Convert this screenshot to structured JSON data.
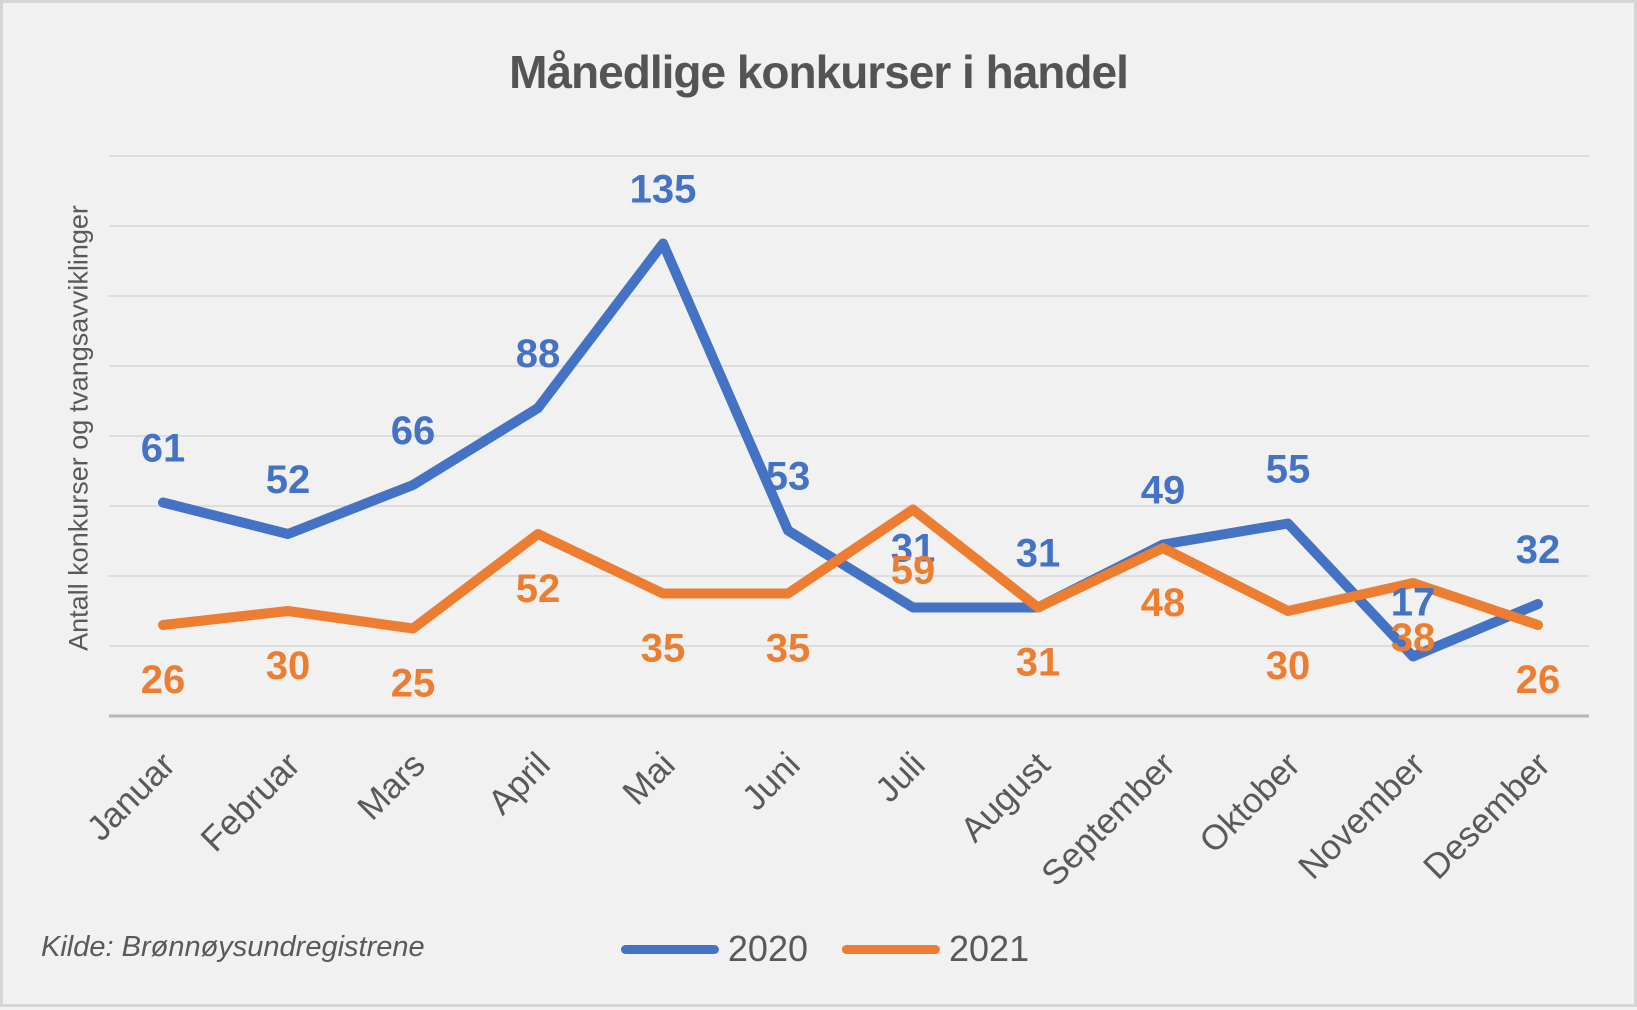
{
  "title": "Månedlige konkurser i handel",
  "source": "Kilde: Brønnøysundregistrene",
  "colors": {
    "series_2020": "#4472C4",
    "series_2021": "#ED7D31",
    "text": "#595959",
    "title_text": "#545454",
    "grid": "#DDDDDD",
    "axis": "#B7B7B7",
    "background": "#F1F1F1",
    "border": "#D5D5D5"
  },
  "legend": [
    {
      "label": "2020",
      "color": "#4472C4"
    },
    {
      "label": "2021",
      "color": "#ED7D31"
    }
  ],
  "chart_data": {
    "type": "line",
    "title": "Månedlige konkurser i handel",
    "xlabel": "",
    "ylabel": "Antall konkurser og tvangsavviklinger",
    "categories": [
      "Januar",
      "Februar",
      "Mars",
      "April",
      "Mai",
      "Juni",
      "Juli",
      "August",
      "September",
      "Oktober",
      "November",
      "Desember"
    ],
    "series": [
      {
        "name": "2020",
        "color": "#4472C4",
        "values": [
          61,
          52,
          66,
          88,
          135,
          53,
          31,
          31,
          49,
          55,
          17,
          32
        ]
      },
      {
        "name": "2021",
        "color": "#ED7D31",
        "values": [
          26,
          30,
          25,
          52,
          35,
          35,
          59,
          31,
          48,
          30,
          38,
          26
        ]
      }
    ],
    "ylim": [
      0,
      160
    ],
    "gridline_interval": 20,
    "grid": true,
    "data_labels": true,
    "legend_position": "bottom"
  }
}
